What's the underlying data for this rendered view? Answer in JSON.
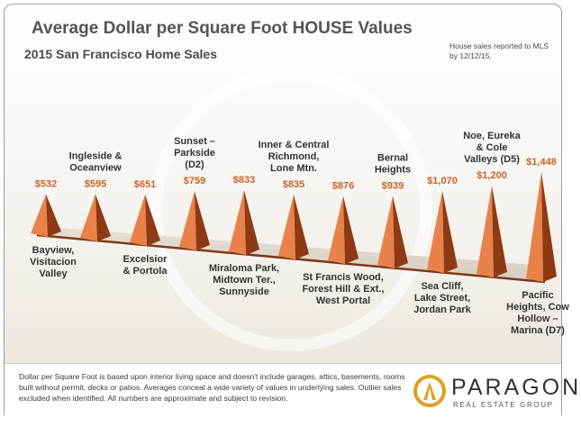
{
  "header": {
    "title": "Average Dollar per Square Foot HOUSE Values",
    "subtitle": "2015 San Francisco Home Sales",
    "note": "House sales reported to MLS by 12/12/15."
  },
  "colors": {
    "peak_light": "#e8824a",
    "peak_dark": "#8e3a14",
    "value_label": "#c8642a",
    "base": "#7a3a1c"
  },
  "chart_data": {
    "type": "bar",
    "title": "Average Dollar per Square Foot HOUSE Values",
    "subtitle": "2015 San Francisco Home Sales",
    "unit": "USD per square foot",
    "categories": [
      "Bayview, Visitacion Valley",
      "Ingleside & Oceanview",
      "Excelsior & Portola",
      "Sunset – Parkside (D2)",
      "Miraloma Park, Midtown Ter., Sunnyside",
      "Inner & Central Richmond, Lone Mtn.",
      "St Francis Wood, Forest Hill & Ext., West Portal",
      "Bernal Heights",
      "Sea Cliff, Lake Street, Jordan Park",
      "Noe, Eureka & Cole Valleys (D5)",
      "Pacific Heights, Cow Hollow – Marina (D7)"
    ],
    "values": [
      532,
      595,
      651,
      759,
      833,
      835,
      876,
      939,
      1070,
      1200,
      1448
    ],
    "value_labels": [
      "$532",
      "$595",
      "$651",
      "$759",
      "$833",
      "$835",
      "$876",
      "$939",
      "$1,070",
      "$1,200",
      "$1,448"
    ],
    "label_lines": [
      [
        "Bayview,",
        "Visitacion",
        "Valley"
      ],
      [
        "Ingleside &",
        "Oceanview"
      ],
      [
        "Excelsior",
        "& Portola"
      ],
      [
        "Sunset –",
        "Parkside",
        "(D2)"
      ],
      [
        "Miraloma Park,",
        "Midtown Ter.,",
        "Sunnyside"
      ],
      [
        "Inner & Central",
        "Richmond,",
        "Lone Mtn."
      ],
      [
        "St Francis Wood,",
        "Forest Hill & Ext.,",
        "West Portal"
      ],
      [
        "Bernal",
        "Heights"
      ],
      [
        "Sea Cliff,",
        "Lake Street,",
        "Jordan Park"
      ],
      [
        "Noe, Eureka",
        "& Cole",
        "Valleys (D5)"
      ],
      [
        "Pacific",
        "Heights, Cow",
        "Hollow –",
        "Marina (D7)"
      ]
    ],
    "label_positions": [
      "below",
      "above",
      "below",
      "above",
      "below",
      "above",
      "below",
      "above",
      "below",
      "above",
      "below"
    ],
    "grid": false,
    "legend": "none"
  },
  "footer": {
    "disclaimer": "Dollar per Square Foot is based upon interior living space and doesn't include garages, attics, basements, rooms built without permit, decks or patios. Averages conceal a wide variety of values in underlying sales. Outlier sales excluded when identified. All numbers are approximate and subject to revision.",
    "logo_name": "PARAGON",
    "logo_tagline": "REAL ESTATE GROUP"
  }
}
